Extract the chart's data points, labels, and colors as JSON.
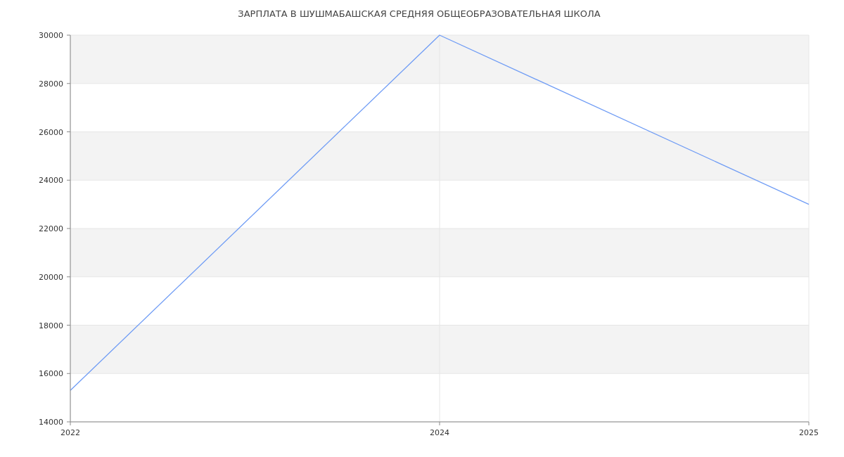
{
  "chart_data": {
    "type": "line",
    "title": "ЗАРПЛАТА В ШУШМАБАШСКАЯ СРЕДНЯЯ ОБЩЕОБРАЗОВАТЕЛЬНАЯ ШКОЛА",
    "categories": [
      "2022",
      "2024",
      "2025"
    ],
    "series": [
      {
        "color": "#6f9cf5",
        "values": [
          15300,
          30000,
          23000
        ]
      }
    ],
    "ylim": [
      14000,
      30000
    ],
    "yticks": [
      14000,
      16000,
      18000,
      20000,
      22000,
      24000,
      26000,
      28000,
      30000
    ],
    "grid": true,
    "marker": "none",
    "line_style": "solid"
  }
}
